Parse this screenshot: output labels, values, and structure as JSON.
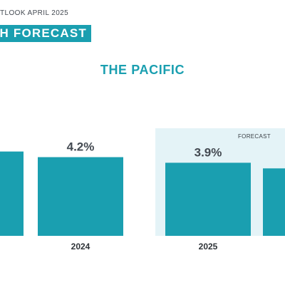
{
  "header": {
    "subtitle": "TLOOK APRIL 2025",
    "title": "H FORECAST"
  },
  "region": "THE PACIFIC",
  "colors": {
    "bar": "#1a9fb0",
    "forecast_bg": "#e4f3f7",
    "text": "#444a52"
  },
  "chart_data": {
    "type": "bar",
    "categories": [
      "",
      "2024",
      "2025",
      ""
    ],
    "values": [
      4.5,
      4.2,
      3.9,
      3.6
    ],
    "labels": [
      "",
      "4.2%",
      "3.9%",
      ""
    ],
    "forecast_label": "FORECAST",
    "forecast_from_index": 2,
    "ylim": [
      0,
      5
    ],
    "xlabel": "",
    "ylabel": "",
    "title": "THE PACIFIC"
  }
}
